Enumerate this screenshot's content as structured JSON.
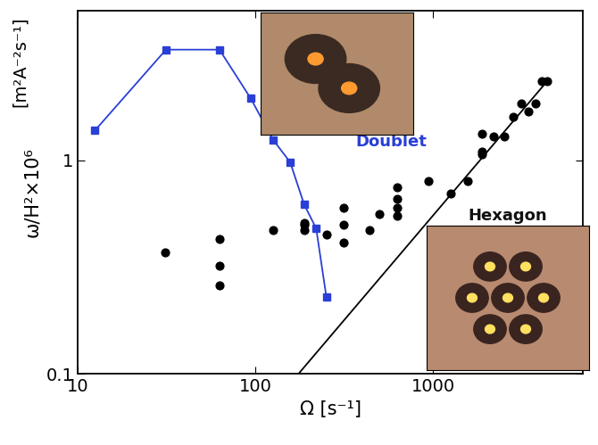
{
  "chart_data": {
    "type": "scatter",
    "xlabel": "Ω [s⁻¹]",
    "ylabel": "ω/H²×10⁶",
    "annotations": [
      {
        "text": "[m²A⁻²s⁻¹]",
        "color": "#000000"
      },
      {
        "text": "Doublet",
        "color": "#2a3fd6"
      },
      {
        "text": "Hexagon",
        "color": "#111111"
      }
    ],
    "log": true,
    "grid": false,
    "xlim": [
      10,
      7000
    ],
    "ylim": [
      0.1,
      5
    ],
    "xticks": [
      10,
      100,
      1000
    ],
    "yticks": [
      0.1,
      1
    ],
    "series": [
      {
        "type": "line",
        "color": "#2a3fd6",
        "marker": "square",
        "line_style": "solid",
        "x": [
          12.5,
          31.4,
          62.8,
          94.2,
          125.7,
          157,
          188.5,
          220,
          251
        ],
        "values": [
          1.38,
          3.3,
          3.3,
          1.95,
          1.25,
          0.98,
          0.62,
          0.48,
          0.23
        ]
      },
      {
        "type": "scatter",
        "color": "#000000",
        "marker": "circle",
        "line_style": "none",
        "x": [
          31,
          63,
          63,
          63,
          126,
          188,
          188,
          188,
          251,
          314,
          314,
          314,
          440,
          500,
          628,
          628,
          628,
          628,
          942,
          1257,
          1571,
          1885,
          1885,
          1885,
          2199,
          2513,
          2827,
          3142,
          3456,
          3770,
          4084,
          4398
        ],
        "values": [
          0.37,
          0.43,
          0.32,
          0.26,
          0.47,
          0.47,
          0.5,
          0.51,
          0.45,
          0.41,
          0.5,
          0.6,
          0.47,
          0.56,
          0.55,
          0.6,
          0.66,
          0.75,
          0.8,
          0.7,
          0.8,
          1.07,
          1.1,
          1.33,
          1.3,
          1.3,
          1.6,
          1.85,
          1.7,
          1.85,
          2.35,
          2.35
        ]
      },
      {
        "type": "line",
        "color": "#000000",
        "marker": "none",
        "line_style": "solid",
        "x": [
          175,
          4400
        ],
        "values": [
          0.1,
          2.35
        ]
      }
    ]
  }
}
